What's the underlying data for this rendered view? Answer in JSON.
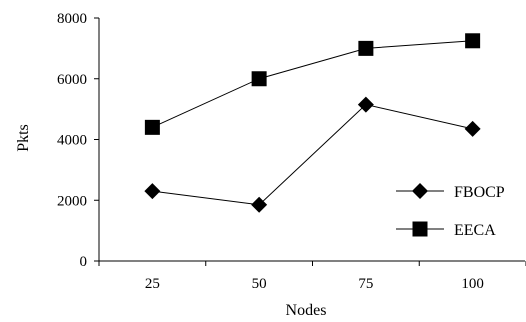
{
  "chart_data": {
    "type": "line",
    "title": "",
    "xlabel": "Nodes",
    "ylabel": "Pkts",
    "categories": [
      "25",
      "50",
      "75",
      "100"
    ],
    "ylim": [
      0,
      8000
    ],
    "yticks": [
      0,
      2000,
      4000,
      6000,
      8000
    ],
    "grid": false,
    "legend_position": "bottom-right",
    "series": [
      {
        "name": "FBOCP",
        "marker": "diamond",
        "color": "#000000",
        "values": [
          2300,
          1850,
          5150,
          4350
        ]
      },
      {
        "name": "EECA",
        "marker": "square",
        "color": "#000000",
        "values": [
          4400,
          6000,
          7000,
          7250
        ]
      }
    ]
  }
}
